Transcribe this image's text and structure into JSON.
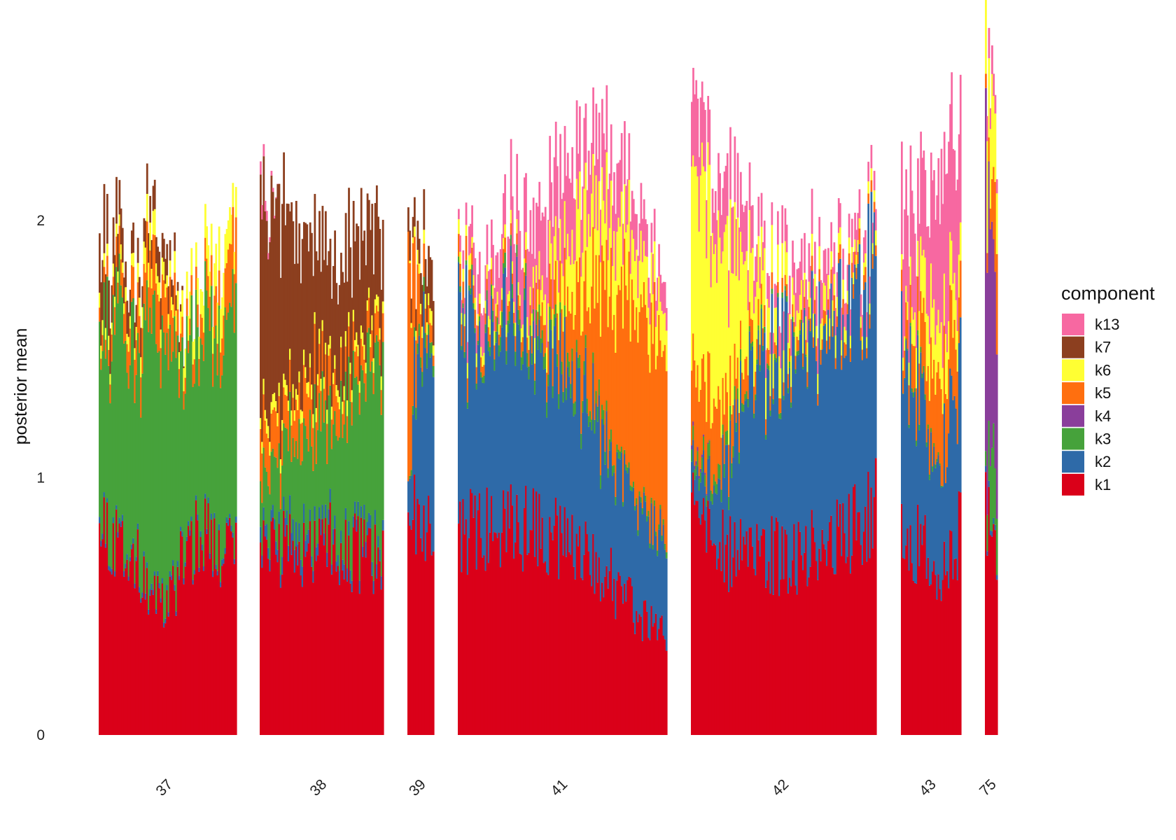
{
  "chart_data": {
    "type": "bar",
    "stacked": true,
    "ylabel": "posterior mean",
    "xlabel": "",
    "ylim": [
      0,
      2.8
    ],
    "yticks": [
      0,
      1,
      2
    ],
    "grid": false,
    "legend": {
      "title": "component",
      "position": "right",
      "entries": [
        {
          "name": "k13",
          "color": "#F768A1"
        },
        {
          "name": "k7",
          "color": "#8C3F1F"
        },
        {
          "name": "k6",
          "color": "#FFFF33"
        },
        {
          "name": "k5",
          "color": "#FF6F0F"
        },
        {
          "name": "k4",
          "color": "#8A3E9B"
        },
        {
          "name": "k3",
          "color": "#46A23B"
        },
        {
          "name": "k2",
          "color": "#2E6AA8"
        },
        {
          "name": "k1",
          "color": "#DA0019"
        }
      ]
    },
    "stack_order": [
      "k1",
      "k2",
      "k3",
      "k4",
      "k5",
      "k6",
      "k7",
      "k13"
    ],
    "groups": [
      {
        "label": "37",
        "n_bars": 90,
        "values": {
          "k1": [
            0.78,
            0.72,
            0.7,
            0.55,
            0.48,
            0.7,
            0.78,
            0.7,
            0.7
          ],
          "k2": [
            0.02,
            0.02,
            0.02,
            0.02,
            0.02,
            0.02,
            0.02,
            0.02,
            0.02
          ],
          "k3": [
            0.75,
            0.85,
            0.85,
            0.95,
            1.05,
            0.8,
            0.85,
            0.8,
            0.85
          ],
          "k4": [
            0.0,
            0.0,
            0.0,
            0.0,
            0.0,
            0.0,
            0.0,
            0.0,
            0.0
          ],
          "k5": [
            0.05,
            0.1,
            0.15,
            0.2,
            0.2,
            0.05,
            0.1,
            0.15,
            0.25
          ],
          "k6": [
            0.05,
            0.05,
            0.05,
            0.1,
            0.05,
            0.1,
            0.1,
            0.15,
            0.1
          ],
          "k7": [
            0.25,
            0.15,
            0.1,
            0.1,
            0.1,
            0.0,
            0.0,
            0.0,
            0.0
          ],
          "k13": [
            0.0,
            0.0,
            0.0,
            0.0,
            0.0,
            0.0,
            0.0,
            0.0,
            0.0
          ]
        }
      },
      {
        "label": "38",
        "n_bars": 80,
        "values": {
          "k1": [
            0.7,
            0.72,
            0.75,
            0.7,
            0.75,
            0.72,
            0.7,
            0.7
          ],
          "k2": [
            0.05,
            0.05,
            0.08,
            0.05,
            0.05,
            0.05,
            0.05,
            0.05
          ],
          "k3": [
            0.2,
            0.3,
            0.35,
            0.4,
            0.45,
            0.55,
            0.6,
            0.8
          ],
          "k4": [
            0.0,
            0.0,
            0.0,
            0.0,
            0.0,
            0.0,
            0.0,
            0.0
          ],
          "k5": [
            0.2,
            0.15,
            0.15,
            0.2,
            0.15,
            0.1,
            0.1,
            0.1
          ],
          "k6": [
            0.05,
            0.05,
            0.05,
            0.05,
            0.05,
            0.05,
            0.05,
            0.05
          ],
          "k7": [
            0.8,
            0.75,
            0.65,
            0.55,
            0.45,
            0.4,
            0.45,
            0.3
          ],
          "k13": [
            0.05,
            0.0,
            0.0,
            0.0,
            0.0,
            0.0,
            0.0,
            0.0
          ]
        }
      },
      {
        "label": "39",
        "n_bars": 17,
        "values": {
          "k1": [
            0.8,
            0.9,
            0.85,
            0.75
          ],
          "k2": [
            0.1,
            0.55,
            0.7,
            0.75
          ],
          "k3": [
            0.0,
            0.05,
            0.05,
            0.05
          ],
          "k4": [
            0.0,
            0.0,
            0.0,
            0.0
          ],
          "k5": [
            0.8,
            0.3,
            0.1,
            0.05
          ],
          "k6": [
            0.0,
            0.05,
            0.05,
            0.05
          ],
          "k7": [
            0.1,
            0.1,
            0.15,
            0.2
          ],
          "k13": [
            0.0,
            0.0,
            0.0,
            0.0
          ]
        }
      },
      {
        "label": "41",
        "n_bars": 140,
        "values": {
          "k1": [
            0.75,
            0.82,
            0.8,
            0.8,
            0.78,
            0.75,
            0.7,
            0.62,
            0.55,
            0.45,
            0.4
          ],
          "k2": [
            0.85,
            0.75,
            0.8,
            0.75,
            0.75,
            0.65,
            0.6,
            0.55,
            0.45,
            0.4,
            0.35
          ],
          "k3": [
            0.02,
            0.02,
            0.05,
            0.05,
            0.05,
            0.05,
            0.05,
            0.05,
            0.02,
            0.02,
            0.02
          ],
          "k4": [
            0.0,
            0.0,
            0.0,
            0.0,
            0.0,
            0.0,
            0.0,
            0.0,
            0.0,
            0.0,
            0.0
          ],
          "k5": [
            0.1,
            0.05,
            0.05,
            0.05,
            0.1,
            0.2,
            0.35,
            0.55,
            0.7,
            0.75,
            0.7
          ],
          "k6": [
            0.05,
            0.05,
            0.05,
            0.05,
            0.1,
            0.2,
            0.3,
            0.3,
            0.25,
            0.2,
            0.15
          ],
          "k7": [
            0.0,
            0.0,
            0.0,
            0.0,
            0.0,
            0.0,
            0.0,
            0.0,
            0.0,
            0.0,
            0.0
          ],
          "k13": [
            0.05,
            0.15,
            0.2,
            0.25,
            0.3,
            0.3,
            0.25,
            0.25,
            0.2,
            0.15,
            0.1
          ]
        }
      },
      {
        "label": "42",
        "n_bars": 125,
        "values": {
          "k1": [
            0.85,
            0.75,
            0.7,
            0.72,
            0.7,
            0.68,
            0.72,
            0.75,
            0.8,
            0.88
          ],
          "k2": [
            0.1,
            0.2,
            0.45,
            0.7,
            0.75,
            0.8,
            0.85,
            0.85,
            0.9,
            0.95
          ],
          "k3": [
            0.05,
            0.05,
            0.05,
            0.02,
            0.02,
            0.02,
            0.0,
            0.0,
            0.0,
            0.0
          ],
          "k4": [
            0.02,
            0.0,
            0.0,
            0.0,
            0.0,
            0.0,
            0.0,
            0.0,
            0.0,
            0.0
          ],
          "k5": [
            0.35,
            0.3,
            0.15,
            0.1,
            0.05,
            0.05,
            0.05,
            0.05,
            0.05,
            0.05
          ],
          "k6": [
            0.75,
            0.65,
            0.55,
            0.25,
            0.15,
            0.1,
            0.1,
            0.08,
            0.05,
            0.05
          ],
          "k7": [
            0.0,
            0.0,
            0.0,
            0.0,
            0.0,
            0.0,
            0.0,
            0.0,
            0.0,
            0.0
          ],
          "k13": [
            0.3,
            0.2,
            0.25,
            0.15,
            0.1,
            0.15,
            0.15,
            0.12,
            0.1,
            0.08
          ]
        }
      },
      {
        "label": "43",
        "n_bars": 41,
        "values": {
          "k1": [
            0.8,
            0.75,
            0.7,
            0.65,
            0.8
          ],
          "k2": [
            0.7,
            0.6,
            0.5,
            0.45,
            0.7
          ],
          "k3": [
            0.0,
            0.02,
            0.02,
            0.0,
            0.0
          ],
          "k4": [
            0.0,
            0.0,
            0.0,
            0.0,
            0.0
          ],
          "k5": [
            0.1,
            0.2,
            0.3,
            0.35,
            0.2
          ],
          "k6": [
            0.05,
            0.15,
            0.25,
            0.2,
            0.15
          ],
          "k7": [
            0.0,
            0.0,
            0.0,
            0.0,
            0.0
          ],
          "k13": [
            0.45,
            0.35,
            0.45,
            0.6,
            0.5
          ]
        }
      },
      {
        "label": "75",
        "n_bars": 8,
        "values": {
          "k1": [
            0.9,
            0.8,
            0.7
          ],
          "k2": [
            0.02,
            0.02,
            0.02
          ],
          "k3": [
            0.05,
            0.35,
            0.25
          ],
          "k4": [
            1.25,
            0.8,
            0.6
          ],
          "k5": [
            0.05,
            0.1,
            0.45
          ],
          "k6": [
            0.4,
            0.35,
            0.3
          ],
          "k7": [
            0.0,
            0.0,
            0.0
          ],
          "k13": [
            0.1,
            0.1,
            0.05
          ]
        }
      }
    ]
  }
}
